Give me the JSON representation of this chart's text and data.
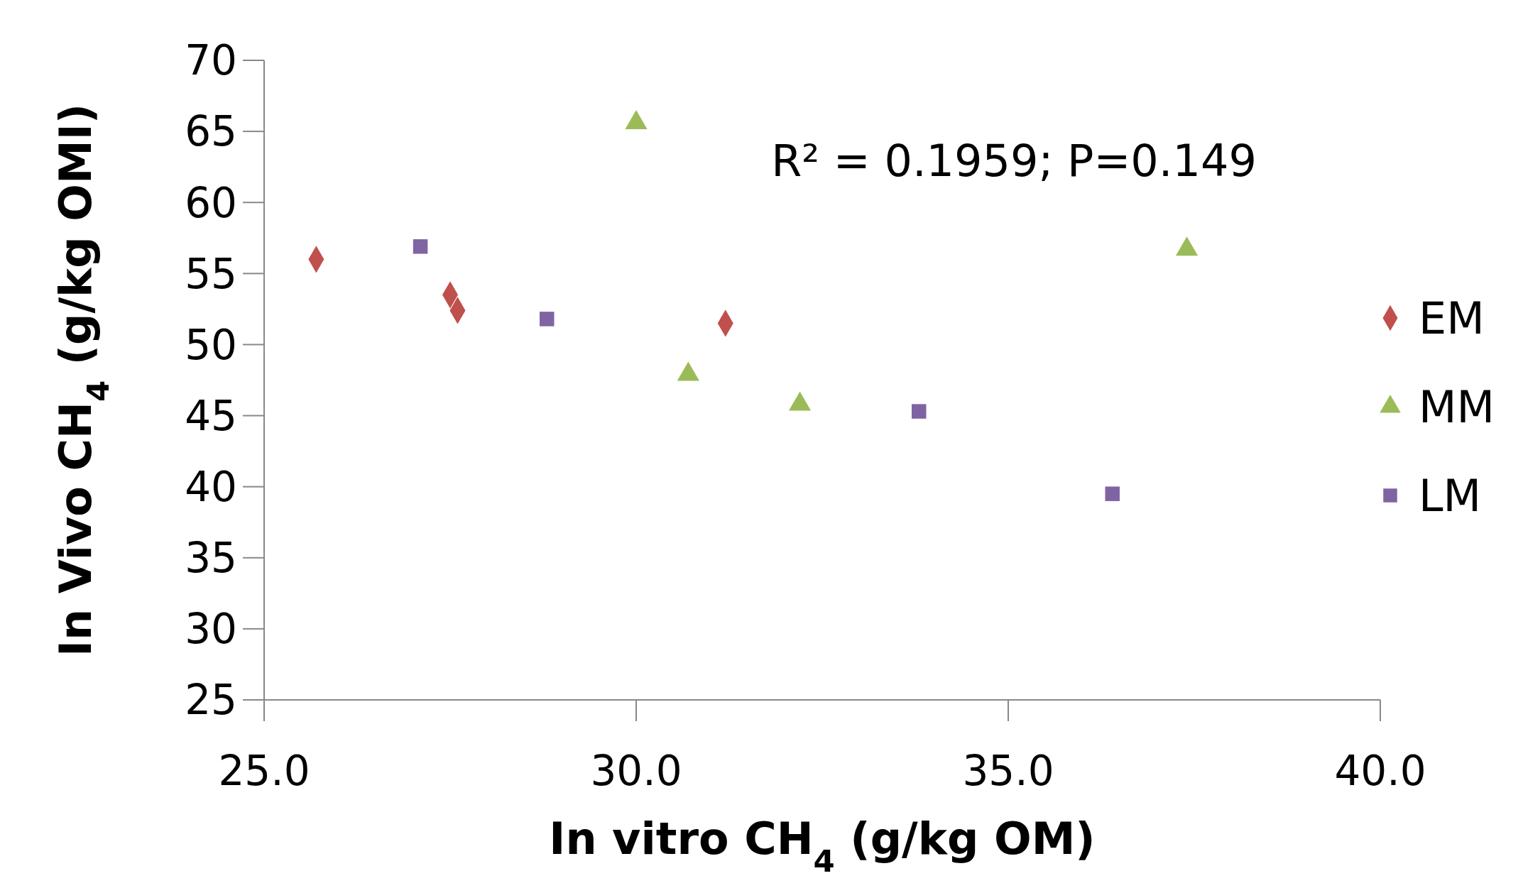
{
  "chart_data": {
    "type": "scatter",
    "xlabel": "In vitro CH$_{4}$ (g/kg OM)",
    "ylabel": "In Vivo CH$_{4}$ (g/kg OMI)",
    "annotations": [
      "R² = 0.1959; P=0.149"
    ],
    "xlim": [
      25,
      40
    ],
    "xticks": [
      {
        "value": 25,
        "label": "25.0"
      },
      {
        "value": 30,
        "label": "30.0"
      },
      {
        "value": 35,
        "label": "35.0"
      },
      {
        "value": 40,
        "label": "40.0"
      }
    ],
    "ylim": [
      25,
      70
    ],
    "yticks": [
      25,
      30,
      35,
      40,
      45,
      50,
      55,
      60,
      65,
      70
    ],
    "grid": false,
    "legend": "right",
    "series": [
      {
        "name": "EM",
        "color": "#c0504d",
        "marker": "diamond",
        "x": [
          25.7,
          27.5,
          27.6,
          31.2
        ],
        "values": [
          56.0,
          53.5,
          52.4,
          51.5
        ]
      },
      {
        "name": "MM",
        "color": "#9bbb59",
        "marker": "triangle",
        "x": [
          30.0,
          30.7,
          32.2,
          37.4
        ],
        "values": [
          65.6,
          47.9,
          45.8,
          56.7
        ]
      },
      {
        "name": "LM",
        "color": "#8064a2",
        "marker": "square",
        "x": [
          27.1,
          28.8,
          33.8,
          36.4
        ],
        "values": [
          56.9,
          51.8,
          45.3,
          39.5
        ]
      }
    ]
  }
}
